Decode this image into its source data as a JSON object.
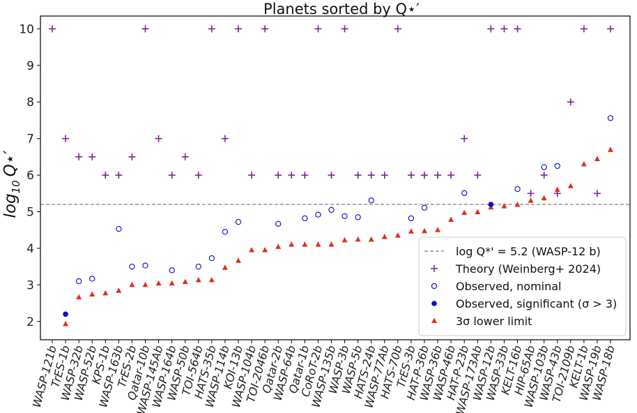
{
  "chart_data": {
    "type": "scatter",
    "title": "Planets sorted by Q⋆′",
    "ylabel": "log10 Q⋆′",
    "ylabel_base": "log",
    "ylabel_sub": "10",
    "ylabel_var": "Q⋆′",
    "xlabel": "",
    "ylim": [
      1.5,
      10.35
    ],
    "yticks": [
      2,
      3,
      4,
      5,
      6,
      7,
      8,
      9,
      10
    ],
    "grid": false,
    "legend_position": "lower-right",
    "reference_line": {
      "label": "log Q*' = 5.2 (WASP-12 b)",
      "value": 5.2,
      "color": "#808080",
      "style": "dashed"
    },
    "categories": [
      "WASP-121b",
      "TrES-1b",
      "WASP-32b",
      "WASP-52b",
      "KPS-1b",
      "WASP-163b",
      "TrES-2b",
      "Qatar-10b",
      "WASP-145Ab",
      "WASP-164b",
      "WASP-50b",
      "TOI-564b",
      "HATS-35b",
      "WASP-114b",
      "KOI-13b",
      "WASP-104b",
      "TOI-2046b",
      "Qatar-2b",
      "WASP-64b",
      "Qatar-1b",
      "CoRoT-2b",
      "WASP-135b",
      "WASP-3b",
      "WASP-5b",
      "HATS-24b",
      "WASP-77Ab",
      "HATS-70b",
      "TrES-3b",
      "HAT-P-36b",
      "WASP-36b",
      "WASP-46b",
      "HAT-P-23b",
      "WASP-173Ab",
      "WASP-12b",
      "WASP-33b",
      "KELT-16b",
      "HIP-65Ab",
      "WASP-103b",
      "WASP-43b",
      "TOI-2109b",
      "KELT-1b",
      "WASP-19b",
      "WASP-18b"
    ],
    "series": [
      {
        "name": "Theory (Weinberg+ 2024)",
        "marker": "plus",
        "color": "#7b1fa2",
        "values": [
          10,
          7,
          6.5,
          6.5,
          6,
          6,
          6.5,
          10,
          7,
          6,
          6.5,
          6,
          10,
          7,
          10,
          6,
          10,
          6,
          6,
          6,
          10,
          6,
          10,
          6,
          6,
          6,
          10,
          6,
          6,
          6,
          6,
          7,
          6,
          10,
          10,
          10,
          5.5,
          6,
          5.5,
          8,
          10,
          5.5,
          10
        ]
      },
      {
        "name": "Observed, nominal",
        "marker": "open-circle",
        "color": "#1a1acc",
        "values": [
          null,
          null,
          3.1,
          3.17,
          null,
          4.53,
          3.5,
          3.53,
          null,
          3.4,
          null,
          3.5,
          3.73,
          4.45,
          4.72,
          null,
          null,
          4.67,
          null,
          4.82,
          4.92,
          5.05,
          4.88,
          4.85,
          5.31,
          null,
          null,
          4.82,
          5.11,
          null,
          null,
          5.51,
          null,
          null,
          null,
          5.62,
          null,
          6.22,
          6.25,
          null,
          null,
          null,
          7.56
        ]
      },
      {
        "name": "Observed, significant (σ > 3)",
        "marker": "filled-circle",
        "color": "#0a0ad6",
        "values": [
          null,
          2.2,
          null,
          null,
          null,
          null,
          null,
          null,
          null,
          null,
          null,
          null,
          null,
          null,
          null,
          null,
          null,
          null,
          null,
          null,
          null,
          null,
          null,
          null,
          null,
          null,
          null,
          null,
          null,
          null,
          null,
          null,
          null,
          5.2,
          null,
          null,
          null,
          null,
          null,
          null,
          null,
          null,
          null
        ]
      },
      {
        "name": "3σ lower limit",
        "marker": "triangle",
        "color": "#e0301e",
        "values": [
          null,
          1.93,
          2.66,
          2.74,
          2.77,
          2.84,
          3.0,
          3.0,
          3.04,
          3.04,
          3.08,
          3.13,
          3.13,
          3.47,
          3.66,
          3.95,
          3.95,
          4.04,
          4.1,
          4.1,
          4.1,
          4.1,
          4.22,
          4.24,
          4.24,
          4.31,
          4.35,
          4.46,
          4.47,
          4.5,
          4.78,
          4.97,
          4.99,
          5.12,
          5.15,
          5.19,
          5.3,
          5.37,
          5.6,
          5.7,
          6.3,
          6.44,
          6.69
        ]
      }
    ]
  }
}
